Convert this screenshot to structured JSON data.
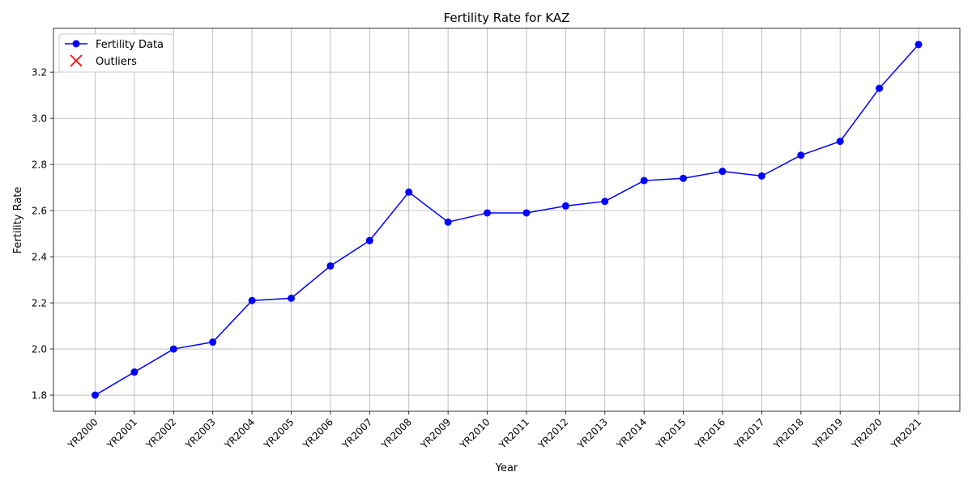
{
  "chart_data": {
    "type": "line",
    "title": "Fertility Rate for KAZ",
    "xlabel": "Year",
    "ylabel": "Fertility Rate",
    "categories": [
      "YR2000",
      "YR2001",
      "YR2002",
      "YR2003",
      "YR2004",
      "YR2005",
      "YR2006",
      "YR2007",
      "YR2008",
      "YR2009",
      "YR2010",
      "YR2011",
      "YR2012",
      "YR2013",
      "YR2014",
      "YR2015",
      "YR2016",
      "YR2017",
      "YR2018",
      "YR2019",
      "YR2020",
      "YR2021"
    ],
    "series": [
      {
        "name": "Fertility Data",
        "color": "#0000ff",
        "values": [
          1.8,
          1.9,
          2.0,
          2.03,
          2.21,
          2.22,
          2.36,
          2.47,
          2.68,
          2.55,
          2.59,
          2.59,
          2.62,
          2.64,
          2.73,
          2.74,
          2.77,
          2.75,
          2.84,
          2.9,
          3.13,
          3.32
        ]
      }
    ],
    "outliers": {
      "name": "Outliers",
      "color": "#ff0000",
      "points": []
    },
    "ylim": [
      1.73,
      3.39
    ],
    "yticks": [
      1.8,
      2.0,
      2.2,
      2.4,
      2.6,
      2.8,
      3.0,
      3.2
    ],
    "ytick_labels": [
      "1.8",
      "2.0",
      "2.2",
      "2.4",
      "2.6",
      "2.8",
      "3.0",
      "3.2"
    ],
    "grid": true,
    "legend_position": "top-left"
  }
}
